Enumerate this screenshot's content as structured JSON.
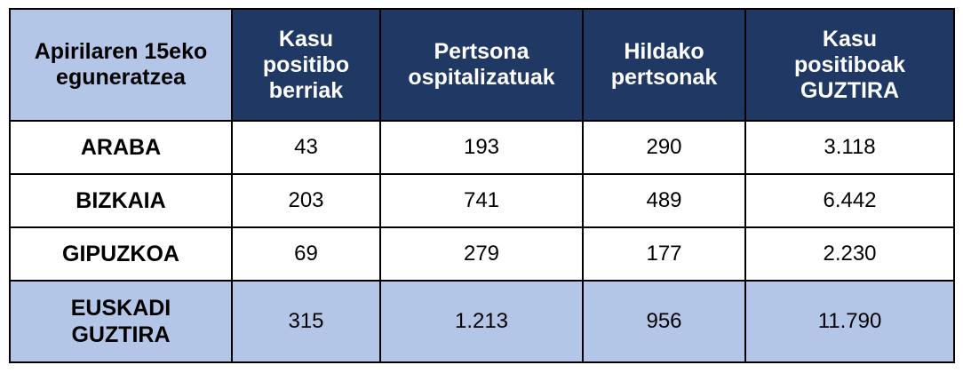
{
  "chart_data": {
    "type": "table",
    "corner_header": "Apirilaren 15eko eguneratzea",
    "columns": [
      "Kasu positibo berriak",
      "Pertsona ospitalizatuak",
      "Hildako pertsonak",
      "Kasu positiboak GUZTIRA"
    ],
    "rows": [
      {
        "label": "ARABA",
        "values": [
          "43",
          "193",
          "290",
          "3.118"
        ]
      },
      {
        "label": "BIZKAIA",
        "values": [
          "203",
          "741",
          "489",
          "6.442"
        ]
      },
      {
        "label": "GIPUZKOA",
        "values": [
          "69",
          "279",
          "177",
          "2.230"
        ]
      },
      {
        "label": "EUSKADI GUZTIRA",
        "values": [
          "315",
          "1.213",
          "956",
          "11.790"
        ]
      }
    ],
    "colors": {
      "header_dark": "#203864",
      "header_light": "#b4c6e7",
      "total_row": "#b4c6e7"
    }
  }
}
